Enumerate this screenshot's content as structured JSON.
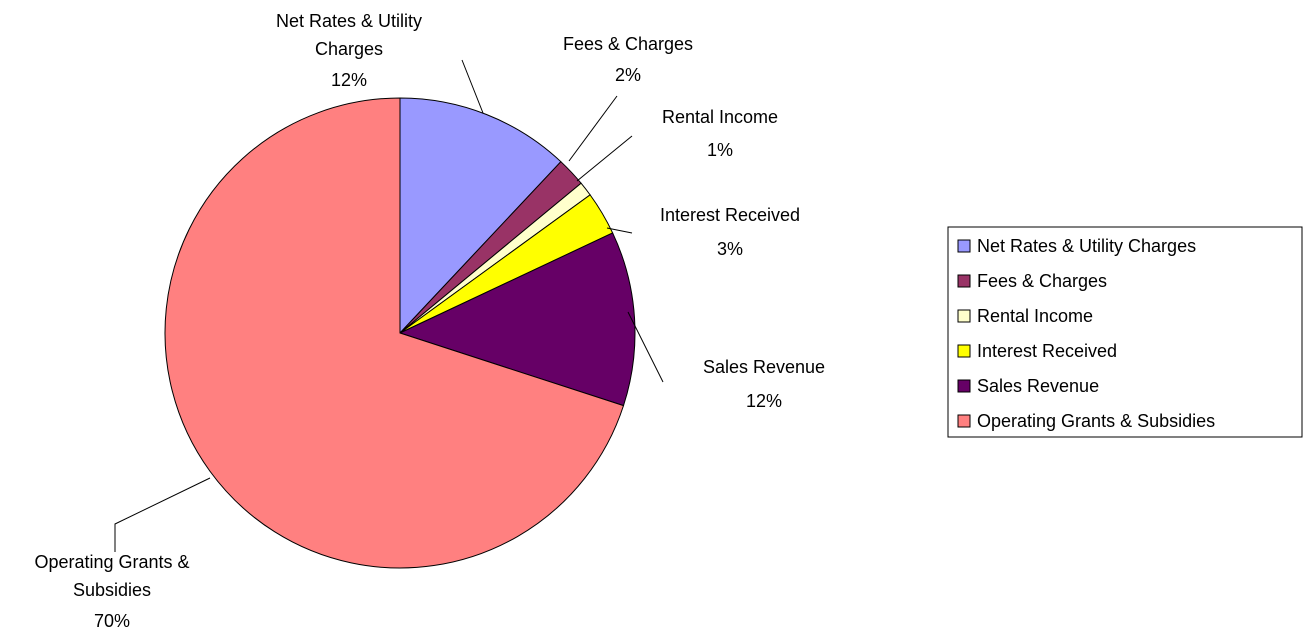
{
  "chart_data": {
    "type": "pie",
    "categories": [
      "Net Rates & Utility Charges",
      "Fees & Charges",
      "Rental Income",
      "Interest Received",
      "Sales Revenue",
      "Operating Grants & Subsidies"
    ],
    "values": [
      12,
      2,
      1,
      3,
      12,
      70
    ],
    "value_labels": [
      "12%",
      "2%",
      "1%",
      "3%",
      "12%",
      "70%"
    ],
    "colors": [
      "#9999ff",
      "#993366",
      "#ffffcc",
      "#ffff00",
      "#660066",
      "#ff8080"
    ],
    "legend": "right"
  }
}
